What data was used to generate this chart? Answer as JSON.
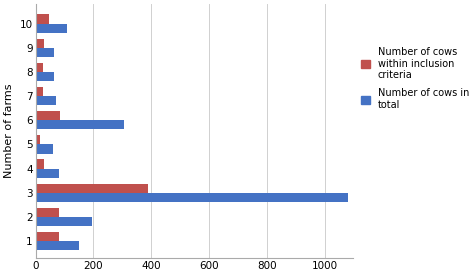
{
  "farms": [
    1,
    2,
    3,
    4,
    5,
    6,
    7,
    8,
    9,
    10
  ],
  "cows_within_criteria": [
    80,
    80,
    390,
    30,
    15,
    85,
    25,
    25,
    30,
    45
  ],
  "cows_in_total": [
    150,
    195,
    1080,
    80,
    60,
    305,
    70,
    65,
    65,
    110
  ],
  "color_red": "#C0504D",
  "color_blue": "#4472C4",
  "ylabel": "Number of farms",
  "xticks": [
    0,
    200,
    400,
    600,
    800,
    1000
  ],
  "xlim": [
    0,
    1100
  ],
  "ylim": [
    0.3,
    10.8
  ],
  "legend_label_red": "Number of cows\nwithin inclusion\ncriteria",
  "legend_label_blue": "Number of cows in\ntotal",
  "background_color": "#ffffff",
  "grid_color": "#d0d0d0",
  "bar_height": 0.38,
  "figsize": [
    4.74,
    2.75
  ],
  "dpi": 100
}
